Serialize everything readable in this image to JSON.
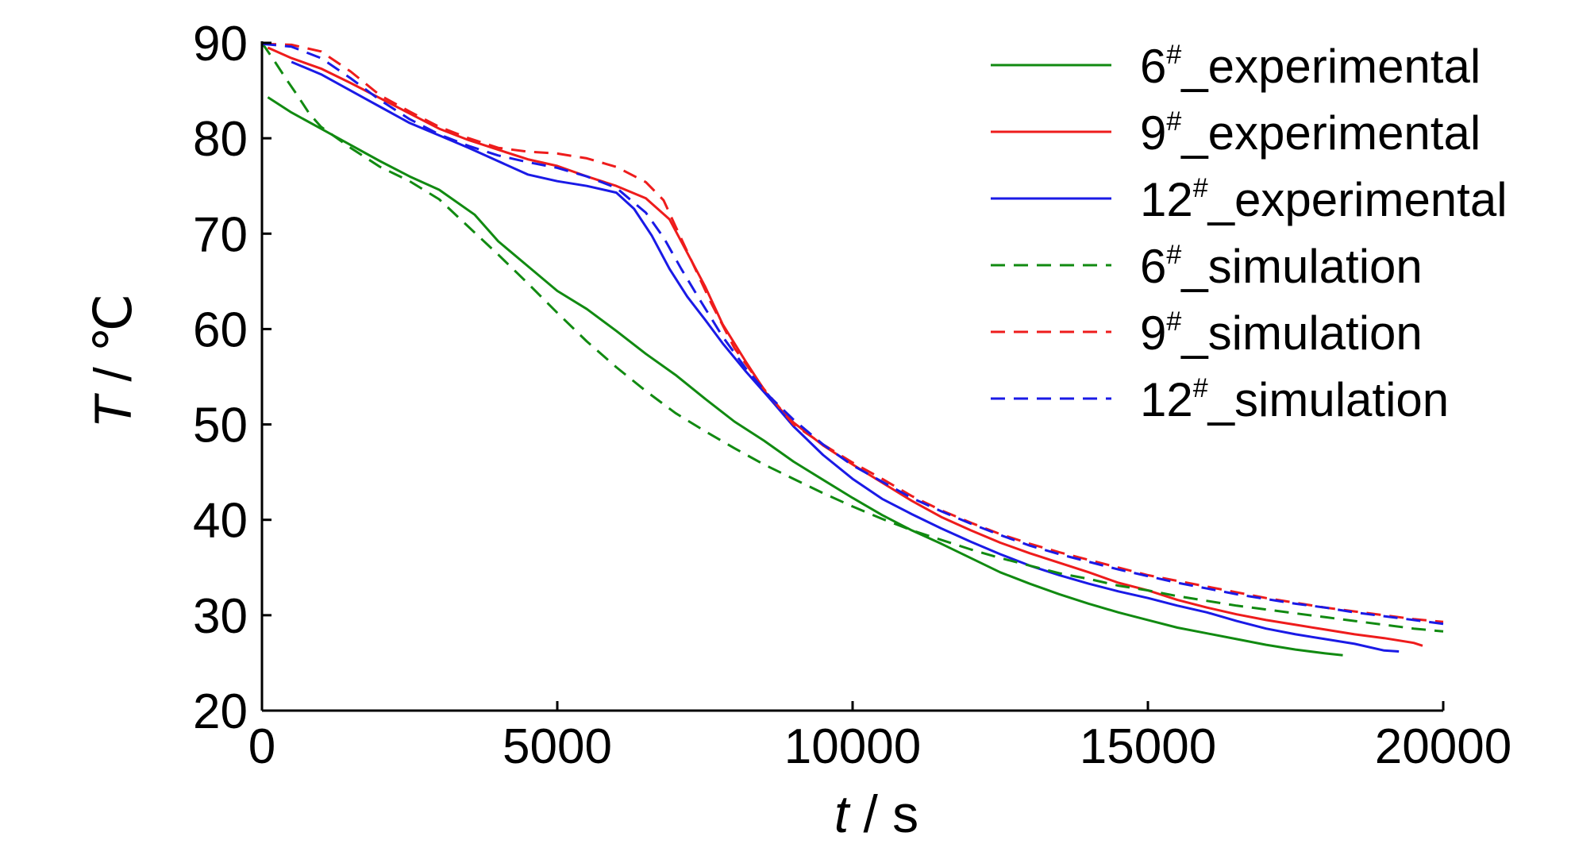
{
  "chart_data": {
    "type": "line",
    "xlabel": {
      "var": "t",
      "unit": " / s"
    },
    "ylabel": {
      "var": "T",
      "unit": " / ℃"
    },
    "xlim": [
      0,
      20000
    ],
    "ylim": [
      20,
      90
    ],
    "xticks": [
      0,
      5000,
      10000,
      15000,
      20000
    ],
    "yticks": [
      20,
      30,
      40,
      50,
      60,
      70,
      80,
      90
    ],
    "grid": false,
    "legend_position": "top-right",
    "series": [
      {
        "name": "6#_experimental",
        "label_main": "6",
        "label_sup": "#",
        "label_suffix": "_experimental",
        "color": "#118A11",
        "dash": "solid",
        "x": [
          100,
          500,
          1000,
          1500,
          2000,
          2500,
          3000,
          3600,
          4000,
          4500,
          5000,
          5500,
          6000,
          6500,
          7000,
          7500,
          8000,
          8500,
          9000,
          9500,
          10000,
          10500,
          11000,
          11500,
          12000,
          12500,
          13000,
          13500,
          14000,
          14500,
          15000,
          15500,
          16000,
          16500,
          17000,
          17500,
          18000,
          18300
        ],
        "y": [
          84.3,
          82.7,
          81.0,
          79.3,
          77.6,
          76.0,
          74.6,
          72.0,
          69.2,
          66.6,
          64.0,
          62.1,
          59.8,
          57.4,
          55.2,
          52.7,
          50.3,
          48.3,
          46.1,
          44.2,
          42.3,
          40.5,
          38.9,
          37.5,
          36.0,
          34.5,
          33.3,
          32.2,
          31.2,
          30.3,
          29.5,
          28.7,
          28.1,
          27.5,
          26.9,
          26.4,
          26.0,
          25.8
        ]
      },
      {
        "name": "9#_experimental",
        "label_main": "9",
        "label_sup": "#",
        "label_suffix": "_experimental",
        "color": "#EE1C1C",
        "dash": "solid",
        "x": [
          100,
          500,
          1000,
          1500,
          2000,
          2500,
          3000,
          3500,
          4000,
          4500,
          5000,
          5500,
          6000,
          6500,
          6900,
          7200,
          7500,
          7800,
          8200,
          8600,
          9000,
          9500,
          10000,
          10500,
          11000,
          11500,
          12000,
          12500,
          13000,
          13500,
          14000,
          14500,
          15000,
          15500,
          16000,
          16500,
          17000,
          17500,
          18000,
          18500,
          19000,
          19500,
          19650
        ],
        "y": [
          89.5,
          88.4,
          87.3,
          85.8,
          84.2,
          82.6,
          81.0,
          79.8,
          78.8,
          77.8,
          77.1,
          76.0,
          75.0,
          73.7,
          71.5,
          68.0,
          64.5,
          60.5,
          56.5,
          52.7,
          50.2,
          47.8,
          45.8,
          43.9,
          42.0,
          40.3,
          38.9,
          37.6,
          36.5,
          35.5,
          34.5,
          33.4,
          32.6,
          31.6,
          30.8,
          30.1,
          29.5,
          29.0,
          28.5,
          28.0,
          27.6,
          27.1,
          26.8
        ]
      },
      {
        "name": "12#_experimental",
        "label_main": "12",
        "label_sup": "#",
        "label_suffix": "_experimental",
        "color": "#1A1AE6",
        "dash": "solid",
        "x": [
          500,
          1000,
          1500,
          2000,
          2500,
          3000,
          3500,
          4000,
          4500,
          5000,
          5500,
          6000,
          6300,
          6600,
          6900,
          7200,
          7500,
          7800,
          8200,
          8600,
          9000,
          9500,
          10000,
          10500,
          11000,
          11500,
          12000,
          12500,
          13000,
          13500,
          14000,
          14500,
          15000,
          15500,
          16000,
          16500,
          17000,
          17500,
          18000,
          18500,
          19000,
          19250
        ],
        "y": [
          88.0,
          86.7,
          85.0,
          83.3,
          81.6,
          80.3,
          79.0,
          77.6,
          76.2,
          75.5,
          75.0,
          74.3,
          72.6,
          69.8,
          66.3,
          63.4,
          61.0,
          58.5,
          55.5,
          52.7,
          49.8,
          46.8,
          44.3,
          42.2,
          40.6,
          39.1,
          37.7,
          36.4,
          35.2,
          34.2,
          33.3,
          32.5,
          31.8,
          31.0,
          30.3,
          29.4,
          28.6,
          28.0,
          27.5,
          27.0,
          26.3,
          26.2
        ]
      },
      {
        "name": "6#_simulation",
        "label_main": "6",
        "label_sup": "#",
        "label_suffix": "_simulation",
        "color": "#118A11",
        "dash": "dashed",
        "x": [
          0,
          200,
          400,
          600,
          800,
          1000,
          1500,
          2000,
          2500,
          3000,
          3500,
          4000,
          4500,
          5000,
          5500,
          6000,
          6500,
          7000,
          7500,
          8000,
          8500,
          9000,
          9500,
          10000,
          10500,
          11000,
          11500,
          12000,
          12500,
          13000,
          13500,
          14000,
          14500,
          15000,
          15500,
          16000,
          16500,
          17000,
          17500,
          18000,
          18500,
          19000,
          19500,
          20000
        ],
        "y": [
          90.0,
          88.2,
          86.3,
          84.5,
          82.6,
          81.2,
          79.0,
          77.0,
          75.5,
          73.6,
          70.7,
          67.8,
          64.8,
          61.7,
          58.7,
          56.0,
          53.5,
          51.2,
          49.3,
          47.5,
          45.8,
          44.3,
          42.8,
          41.4,
          40.1,
          38.9,
          37.9,
          36.9,
          36.0,
          35.2,
          34.4,
          33.8,
          33.1,
          32.6,
          32.0,
          31.5,
          31.0,
          30.6,
          30.2,
          29.8,
          29.4,
          29.0,
          28.6,
          28.3
        ]
      },
      {
        "name": "9#_simulation",
        "label_main": "9",
        "label_sup": "#",
        "label_suffix": "_simulation",
        "color": "#EE1C1C",
        "dash": "dashed",
        "x": [
          0,
          500,
          1000,
          1500,
          2000,
          2500,
          3000,
          3500,
          4000,
          4500,
          5000,
          5500,
          6000,
          6500,
          6800,
          7000,
          7300,
          7600,
          8000,
          8500,
          9000,
          9500,
          10000,
          10500,
          11000,
          11500,
          12000,
          12500,
          13000,
          13500,
          14000,
          14500,
          15000,
          15500,
          16000,
          16500,
          17000,
          17500,
          18000,
          18500,
          19000,
          19500,
          20000
        ],
        "y": [
          89.9,
          89.8,
          89.1,
          87.0,
          84.5,
          82.8,
          81.2,
          80.0,
          79.0,
          78.6,
          78.4,
          77.9,
          77.0,
          75.4,
          73.5,
          70.8,
          66.8,
          62.8,
          58.0,
          53.7,
          50.0,
          47.9,
          46.0,
          44.3,
          42.5,
          41.0,
          39.7,
          38.5,
          37.5,
          36.6,
          35.8,
          35.0,
          34.2,
          33.6,
          33.0,
          32.4,
          31.8,
          31.3,
          30.8,
          30.4,
          30.0,
          29.6,
          29.3
        ]
      },
      {
        "name": "12#_simulation",
        "label_main": "12",
        "label_sup": "#",
        "label_suffix": "_simulation",
        "color": "#1A1AE6",
        "dash": "dashed",
        "x": [
          0,
          500,
          1000,
          1500,
          2000,
          2500,
          3000,
          3500,
          4000,
          4500,
          5000,
          5500,
          6000,
          6500,
          6800,
          7100,
          7400,
          7800,
          8200,
          8600,
          9000,
          9500,
          10000,
          10500,
          11000,
          11500,
          12000,
          12500,
          13000,
          13500,
          14000,
          14500,
          15000,
          15500,
          16000,
          16500,
          17000,
          17500,
          18000,
          18500,
          19000,
          19500,
          20000
        ],
        "y": [
          89.9,
          89.6,
          88.4,
          86.3,
          84.0,
          82.0,
          80.4,
          79.2,
          78.2,
          77.5,
          76.9,
          76.0,
          74.8,
          72.2,
          69.6,
          66.3,
          63.2,
          59.2,
          55.8,
          52.9,
          50.5,
          47.9,
          45.7,
          44.0,
          42.3,
          40.9,
          39.6,
          38.4,
          37.3,
          36.4,
          35.6,
          34.8,
          34.1,
          33.4,
          32.8,
          32.2,
          31.7,
          31.2,
          30.8,
          30.3,
          29.9,
          29.5,
          29.1
        ]
      }
    ]
  }
}
